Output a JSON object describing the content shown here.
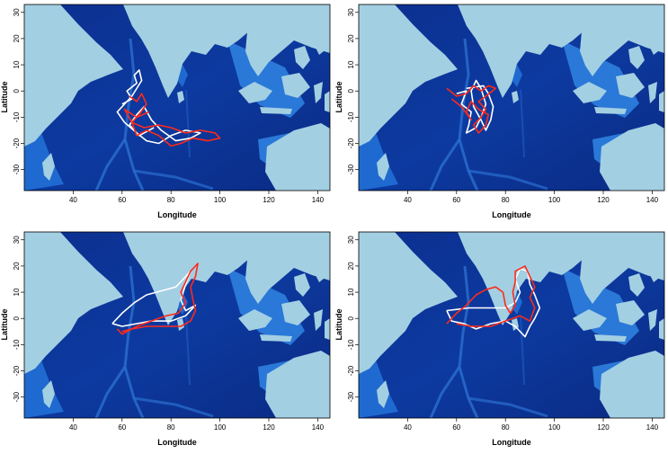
{
  "map_panels": [
    {
      "xlabel": "Longitude",
      "ylabel": "Latitude",
      "x_ticks": [
        "40",
        "60",
        "80",
        "100",
        "120",
        "140"
      ],
      "y_ticks": [
        "30",
        "20",
        "10",
        "0",
        "-10",
        "-20",
        "-30"
      ],
      "tracks": [
        {
          "color": "#ffffff",
          "points": [
            [
              60,
              -5
            ],
            [
              64,
              -3
            ],
            [
              62,
              0
            ],
            [
              66,
              3
            ],
            [
              65,
              6
            ],
            [
              67,
              8
            ],
            [
              68,
              4
            ],
            [
              64,
              -2
            ],
            [
              58,
              -8
            ],
            [
              61,
              -12
            ],
            [
              66,
              -16
            ],
            [
              70,
              -19
            ],
            [
              75,
              -20
            ],
            [
              80,
              -17
            ],
            [
              86,
              -15
            ],
            [
              92,
              -16
            ],
            [
              88,
              -18
            ],
            [
              82,
              -19
            ],
            [
              76,
              -15
            ],
            [
              72,
              -11
            ],
            [
              69,
              -6
            ],
            [
              66,
              -9
            ],
            [
              63,
              -13
            ],
            [
              67,
              -17
            ],
            [
              73,
              -14
            ]
          ]
        },
        {
          "color": "#ff2a1a",
          "points": [
            [
              63,
              -2
            ],
            [
              66,
              -4
            ],
            [
              68,
              -1
            ],
            [
              70,
              -5
            ],
            [
              67,
              -9
            ],
            [
              64,
              -12
            ],
            [
              69,
              -14
            ],
            [
              75,
              -13
            ],
            [
              80,
              -14
            ],
            [
              86,
              -16
            ],
            [
              92,
              -15
            ],
            [
              98,
              -16
            ],
            [
              100,
              -18
            ],
            [
              95,
              -19
            ],
            [
              89,
              -18
            ],
            [
              84,
              -20
            ],
            [
              80,
              -21
            ],
            [
              75,
              -17
            ],
            [
              70,
              -15
            ],
            [
              66,
              -17
            ],
            [
              64,
              -12
            ],
            [
              61,
              -7
            ],
            [
              66,
              -10
            ],
            [
              71,
              -8
            ]
          ]
        }
      ]
    },
    {
      "xlabel": "Longitude",
      "ylabel": "Latitude",
      "x_ticks": [
        "40",
        "60",
        "80",
        "100",
        "120",
        "140"
      ],
      "y_ticks": [
        "30",
        "20",
        "10",
        "0",
        "-10",
        "-20",
        "-30"
      ],
      "tracks": [
        {
          "color": "#ffffff",
          "points": [
            [
              60,
              -1
            ],
            [
              64,
              0
            ],
            [
              62,
              -5
            ],
            [
              66,
              -8
            ],
            [
              65,
              -13
            ],
            [
              64,
              -16
            ],
            [
              68,
              -14
            ],
            [
              70,
              -10
            ],
            [
              72,
              -5
            ],
            [
              70,
              1
            ],
            [
              68,
              4
            ],
            [
              66,
              0
            ],
            [
              67,
              -6
            ],
            [
              70,
              -11
            ],
            [
              72,
              -15
            ],
            [
              74,
              -11
            ],
            [
              75,
              -6
            ],
            [
              73,
              -1
            ],
            [
              71,
              2
            ],
            [
              64,
              1
            ]
          ]
        },
        {
          "color": "#ff2a1a",
          "points": [
            [
              56,
              1
            ],
            [
              60,
              -2
            ],
            [
              64,
              -1
            ],
            [
              67,
              2
            ],
            [
              70,
              0
            ],
            [
              73,
              2
            ],
            [
              76,
              1
            ],
            [
              72,
              -2
            ],
            [
              69,
              -4
            ],
            [
              72,
              -7
            ],
            [
              70,
              -10
            ],
            [
              67,
              -13
            ],
            [
              69,
              -16
            ],
            [
              72,
              -13
            ],
            [
              73,
              -9
            ],
            [
              69,
              -7
            ],
            [
              66,
              -4
            ],
            [
              64,
              -8
            ],
            [
              66,
              -11
            ],
            [
              62,
              -6
            ],
            [
              58,
              -3
            ]
          ]
        }
      ]
    },
    {
      "xlabel": "Longitude",
      "ylabel": "Latitude",
      "x_ticks": [
        "40",
        "60",
        "80",
        "100",
        "120",
        "140"
      ],
      "y_ticks": [
        "30",
        "20",
        "10",
        "0",
        "-10",
        "-20",
        "-30"
      ],
      "tracks": [
        {
          "color": "#ffffff",
          "points": [
            [
              56,
              -2
            ],
            [
              60,
              2
            ],
            [
              65,
              6
            ],
            [
              70,
              9
            ],
            [
              78,
              11
            ],
            [
              82,
              12
            ],
            [
              85,
              15
            ],
            [
              88,
              18
            ],
            [
              86,
              13
            ],
            [
              84,
              7
            ],
            [
              86,
              3
            ],
            [
              90,
              5
            ],
            [
              86,
              1
            ],
            [
              80,
              -1
            ],
            [
              72,
              -1
            ],
            [
              66,
              -2
            ],
            [
              60,
              -3
            ],
            [
              56,
              -2
            ]
          ]
        },
        {
          "color": "#ff2a1a",
          "points": [
            [
              58,
              -4
            ],
            [
              60,
              -6
            ],
            [
              66,
              -3
            ],
            [
              72,
              -1
            ],
            [
              78,
              1
            ],
            [
              83,
              2
            ],
            [
              86,
              6
            ],
            [
              84,
              10
            ],
            [
              86,
              14
            ],
            [
              88,
              18
            ],
            [
              91,
              21
            ],
            [
              90,
              16
            ],
            [
              88,
              12
            ],
            [
              89,
              7
            ],
            [
              90,
              3
            ],
            [
              88,
              -1
            ],
            [
              84,
              -3
            ],
            [
              78,
              -3
            ],
            [
              70,
              -3
            ],
            [
              64,
              -4
            ],
            [
              60,
              -5
            ]
          ]
        }
      ]
    },
    {
      "xlabel": "Longitude",
      "ylabel": "Latitude",
      "x_ticks": [
        "40",
        "60",
        "80",
        "100",
        "120",
        "140"
      ],
      "y_ticks": [
        "30",
        "20",
        "10",
        "0",
        "-10",
        "-20",
        "-30"
      ],
      "tracks": [
        {
          "color": "#ffffff",
          "points": [
            [
              56,
              3
            ],
            [
              65,
              4
            ],
            [
              72,
              4
            ],
            [
              80,
              4
            ],
            [
              84,
              6
            ],
            [
              86,
              10
            ],
            [
              84,
              15
            ],
            [
              86,
              19
            ],
            [
              89,
              18
            ],
            [
              90,
              13
            ],
            [
              92,
              9
            ],
            [
              94,
              4
            ],
            [
              92,
              0
            ],
            [
              90,
              -3
            ],
            [
              88,
              -7
            ],
            [
              84,
              -3
            ],
            [
              80,
              -1
            ],
            [
              74,
              -2
            ],
            [
              68,
              -4
            ],
            [
              63,
              -2
            ],
            [
              58,
              -1
            ],
            [
              56,
              3
            ]
          ]
        },
        {
          "color": "#ff2a1a",
          "points": [
            [
              56,
              -2
            ],
            [
              60,
              2
            ],
            [
              64,
              5
            ],
            [
              68,
              9
            ],
            [
              72,
              11
            ],
            [
              76,
              12
            ],
            [
              79,
              10
            ],
            [
              80,
              5
            ],
            [
              82,
              2
            ],
            [
              84,
              5
            ],
            [
              83,
              10
            ],
            [
              84,
              14
            ],
            [
              84,
              18
            ],
            [
              88,
              20
            ],
            [
              90,
              16
            ],
            [
              92,
              12
            ],
            [
              90,
              8
            ],
            [
              92,
              4
            ],
            [
              90,
              -1
            ],
            [
              86,
              1
            ],
            [
              80,
              -1
            ],
            [
              74,
              -3
            ],
            [
              66,
              -3
            ],
            [
              60,
              -2
            ]
          ]
        }
      ]
    }
  ]
}
